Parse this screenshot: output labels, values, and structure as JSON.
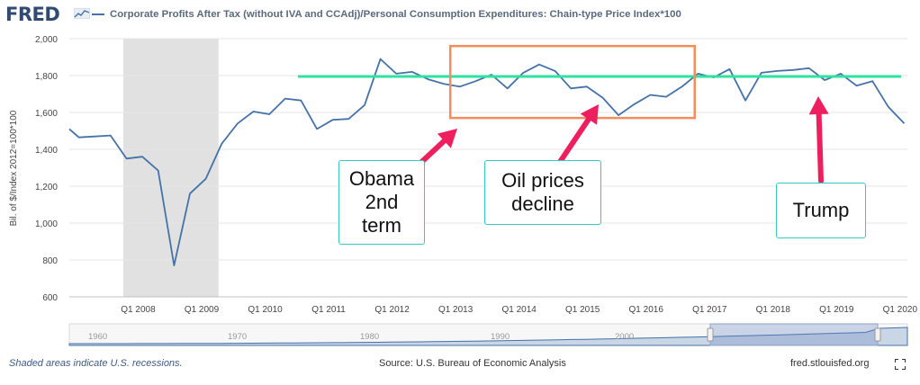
{
  "header": {
    "logo_text": "FRED",
    "legend_label": "Corporate Profits After Tax (without IVA and CCAdj)/Personal Consumption Expenditures: Chain-type Price Index*100"
  },
  "chart_data": {
    "type": "line",
    "title": "Corporate Profits After Tax (without IVA and CCAdj)/Personal Consumption Expenditures: Chain-type Price Index*100",
    "ylabel": "Bil. of $/Index 2012=100*100",
    "xlabel": "",
    "ylim": [
      600,
      2000
    ],
    "yticks": [
      600,
      800,
      1000,
      1200,
      1400,
      1600,
      1800,
      2000
    ],
    "ytick_labels": [
      "600",
      "800",
      "1,000",
      "1,200",
      "1,400",
      "1,600",
      "1,800",
      "2,000"
    ],
    "xlim": [
      2007.1,
      2020.3
    ],
    "xticks": [
      2008,
      2009,
      2010,
      2011,
      2012,
      2013,
      2014,
      2015,
      2016,
      2017,
      2018,
      2019,
      2020
    ],
    "xtick_labels": [
      "Q1 2008",
      "Q1 2009",
      "Q1 2010",
      "Q1 2011",
      "Q1 2012",
      "Q1 2013",
      "Q1 2014",
      "Q1 2015",
      "Q1 2016",
      "Q1 2017",
      "Q1 2018",
      "Q1 2019",
      "Q1 2020"
    ],
    "grid": true,
    "recession": [
      2007.95,
      2009.45
    ],
    "series": [
      {
        "name": "Corporate Profits After Tax / PCE Price Index*100",
        "color": "#4572a7",
        "x": [
          2007.0,
          2007.25,
          2007.5,
          2007.75,
          2008.0,
          2008.25,
          2008.5,
          2008.75,
          2009.0,
          2009.25,
          2009.5,
          2009.75,
          2010.0,
          2010.25,
          2010.5,
          2010.75,
          2011.0,
          2011.25,
          2011.5,
          2011.75,
          2012.0,
          2012.25,
          2012.5,
          2012.75,
          2013.0,
          2013.25,
          2013.5,
          2013.75,
          2014.0,
          2014.25,
          2014.5,
          2014.75,
          2015.0,
          2015.25,
          2015.5,
          2015.75,
          2016.0,
          2016.25,
          2016.5,
          2016.75,
          2017.0,
          2017.25,
          2017.5,
          2017.75,
          2018.0,
          2018.25,
          2018.5,
          2018.75,
          2019.0,
          2019.25,
          2019.5,
          2019.75,
          2020.0,
          2020.25
        ],
        "values": [
          1510,
          1465,
          1470,
          1475,
          1350,
          1360,
          1285,
          770,
          1160,
          1240,
          1430,
          1540,
          1605,
          1590,
          1675,
          1665,
          1510,
          1560,
          1565,
          1640,
          1890,
          1810,
          1820,
          1780,
          1755,
          1740,
          1770,
          1805,
          1730,
          1815,
          1860,
          1825,
          1730,
          1740,
          1680,
          1585,
          1645,
          1695,
          1685,
          1740,
          1810,
          1790,
          1835,
          1665,
          1815,
          1825,
          1830,
          1840,
          1775,
          1810,
          1745,
          1770,
          1630,
          1540
        ]
      }
    ],
    "navigator_labels": [
      "1960",
      "1970",
      "1980",
      "1990",
      "2000"
    ],
    "annotations": {
      "trend_line_color": "#2ee2a0",
      "trend_value": 1795,
      "trend_range": [
        2010.7,
        2020.2
      ],
      "highlight_box_color": "#f28d5c",
      "highlight_range": [
        2013.1,
        2016.95
      ],
      "highlight_y": [
        1960,
        1570
      ],
      "arrow_color": "#ee1f5e",
      "labels": [
        {
          "text": "Obama\n2nd\nterm"
        },
        {
          "text": "Oil prices\ndecline"
        },
        {
          "text": "Trump"
        }
      ]
    }
  },
  "footer": {
    "recession_note": "Shaded areas indicate U.S. recessions.",
    "source": "Source: U.S. Bureau of Economic Analysis",
    "site": "fred.stlouisfed.org"
  }
}
